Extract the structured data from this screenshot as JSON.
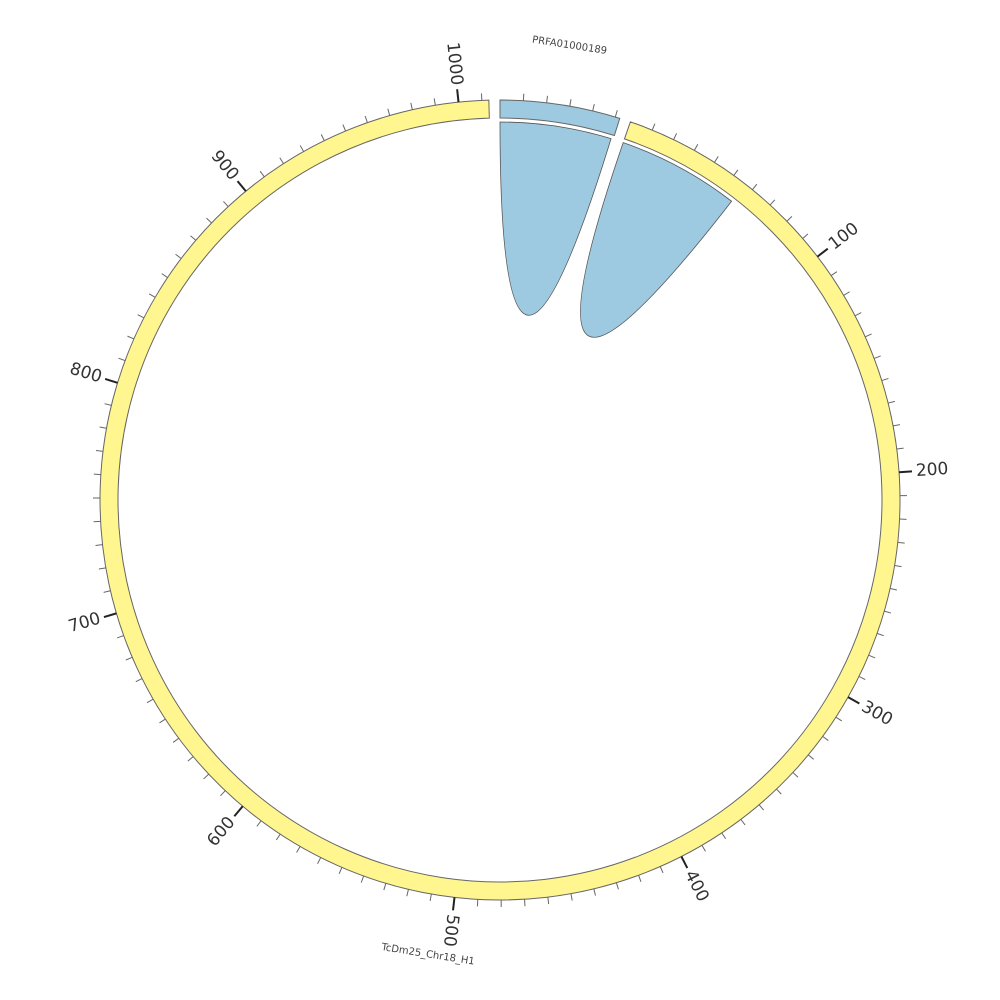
{
  "chart_data": {
    "type": "chord",
    "segments": [
      {
        "name": "PRFA01000189",
        "color": "#9ecae1",
        "length": 52
      },
      {
        "name": "TcDm25_Chr18_H1",
        "color": "#fff68f",
        "length": 1013,
        "ticks": [
          100,
          200,
          300,
          400,
          500,
          600,
          700,
          800,
          900,
          1000
        ]
      }
    ],
    "tick_step": 10,
    "links": [
      {
        "segment": 0,
        "start": 0,
        "end": 51,
        "color": "#9ecae1"
      },
      {
        "segment": 1,
        "start": 0,
        "end": 56,
        "color": "#9ecae1"
      }
    ]
  }
}
